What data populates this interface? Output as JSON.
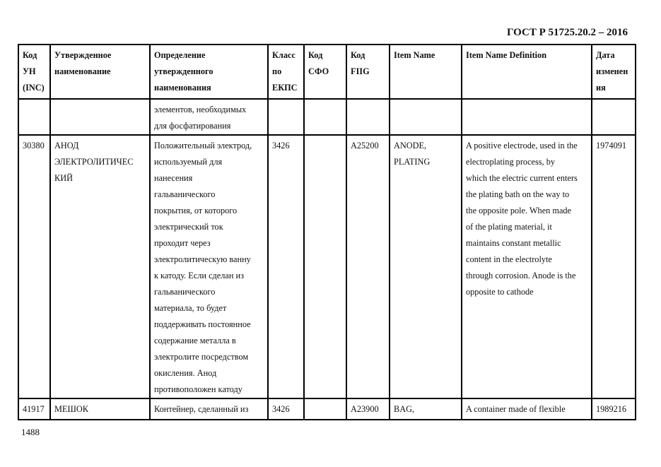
{
  "header": {
    "doc_title": "ГОСТ Р 51725.20.2 – 2016"
  },
  "table": {
    "columns": [
      "Код\nУН\n(INC)",
      "Утвержденное\nнаименование",
      "Определение\nутвержденного\nнаименования",
      "Класс\nпо\nЕКПС",
      "Код\nСФО",
      "Код\nFIIG",
      "Item Name",
      "Item Name Definition",
      "Дата\nизменен\nия"
    ],
    "rows": [
      [
        "",
        "",
        "элементов, необходимых\nдля фосфатирования",
        "",
        "",
        "",
        "",
        "",
        ""
      ],
      [
        "30380",
        "АНОД\nЭЛЕКТРОЛИТИЧЕС\nКИЙ",
        "Положительный электрод,\nиспользуемый для\nнанесения\nгальванического\nпокрытия, от которого\nэлектрический ток\nпроходит через\nэлектролитическую ванну\nк катоду.  Если сделан из\nгальванического\nматериала, то будет\nподдерживать постоянное\nсодержание металла в\nэлектролите посредством\nокисления. Анод\nпротивоположен катоду",
        "3426",
        "",
        "A25200",
        "ANODE,\nPLATING",
        "A positive electrode, used in the\nelectroplating process, by\nwhich the electric current enters\nthe plating bath on the way to\nthe opposite pole. When made\nof the plating material, it\nmaintains constant metallic\ncontent in the electrolyte\nthrough corrosion. Anode is the\nopposite to cathode",
        "1974091"
      ],
      [
        "41917",
        "МЕШОК",
        "Контейнер, сделанный из",
        "3426",
        "",
        "A23900",
        "BAG,",
        "A container made of flexible",
        "1989216"
      ]
    ]
  },
  "footer": {
    "page_number": "1488"
  }
}
